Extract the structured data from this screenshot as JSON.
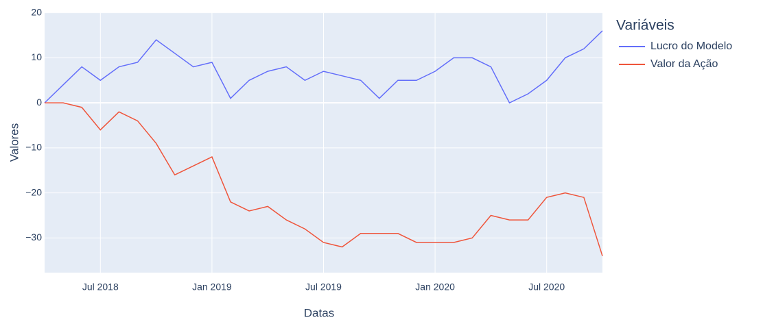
{
  "chart_data": {
    "type": "line",
    "x_title": "Datas",
    "y_title": "Valores",
    "legend_title": "Variáveis",
    "x": [
      "2018-04",
      "2018-05",
      "2018-06",
      "2018-07",
      "2018-08",
      "2018-09",
      "2018-10",
      "2018-11",
      "2018-12",
      "2019-01",
      "2019-02",
      "2019-03",
      "2019-04",
      "2019-05",
      "2019-06",
      "2019-07",
      "2019-08",
      "2019-09",
      "2019-10",
      "2019-11",
      "2019-12",
      "2020-01",
      "2020-02",
      "2020-03",
      "2020-04",
      "2020-05",
      "2020-06",
      "2020-07",
      "2020-08",
      "2020-09",
      "2020-10"
    ],
    "series": [
      {
        "name": "Lucro do Modelo",
        "color": "#636efa",
        "values": [
          0,
          4,
          8,
          5,
          8,
          9,
          14,
          11,
          8,
          9,
          1,
          5,
          7,
          8,
          5,
          7,
          6,
          5,
          1,
          5,
          5,
          7,
          10,
          10,
          8,
          0,
          2,
          5,
          10,
          12,
          16
        ]
      },
      {
        "name": "Valor da Ação",
        "color": "#EF553B",
        "values": [
          0,
          0,
          -1,
          -6,
          -2,
          -4,
          -9,
          -16,
          -14,
          -12,
          -22,
          -24,
          -23,
          -26,
          -28,
          -31,
          -32,
          -29,
          -29,
          -29,
          -31,
          -31,
          -31,
          -30,
          -25,
          -26,
          -26,
          -21,
          -20,
          -21,
          -34
        ]
      }
    ],
    "xlim": [
      "2018-04",
      "2020-10"
    ],
    "xticks": [
      {
        "value": "2018-07",
        "label": "Jul 2018"
      },
      {
        "value": "2019-01",
        "label": "Jan 2019"
      },
      {
        "value": "2019-07",
        "label": "Jul 2019"
      },
      {
        "value": "2020-01",
        "label": "Jan 2020"
      },
      {
        "value": "2020-07",
        "label": "Jul 2020"
      }
    ],
    "ylim": [
      -37.7,
      20.1
    ],
    "yticks": [
      {
        "value": -30,
        "label": "−30"
      },
      {
        "value": -20,
        "label": "−20"
      },
      {
        "value": -10,
        "label": "−10"
      },
      0,
      10,
      20
    ],
    "grid": true,
    "legend": "right",
    "background": "#e5ecf6"
  }
}
